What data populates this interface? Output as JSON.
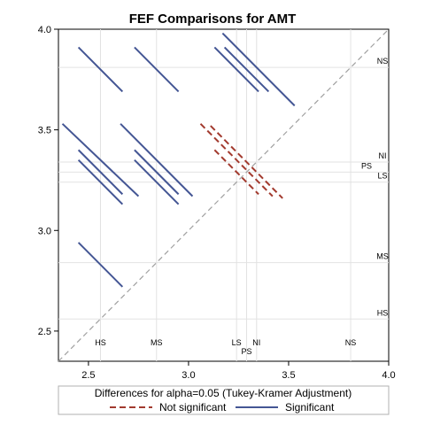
{
  "chart_data": {
    "type": "line",
    "title": "FEF Comparisons for AMT",
    "xlim": [
      2.35,
      4.0
    ],
    "ylim": [
      2.35,
      4.0
    ],
    "x_ticks": [
      "2.5",
      "3.0",
      "3.5",
      "4.0"
    ],
    "y_ticks": [
      "2.5",
      "3.0",
      "3.5",
      "4.0"
    ],
    "groups": [
      {
        "name": "HS",
        "mean": 2.56
      },
      {
        "name": "MS",
        "mean": 2.84
      },
      {
        "name": "LS",
        "mean": 3.24
      },
      {
        "name": "PS",
        "mean": 3.29
      },
      {
        "name": "NI",
        "mean": 3.34
      },
      {
        "name": "NS",
        "mean": 3.81
      }
    ],
    "comparisons": [
      {
        "from": "HS",
        "to": "MS",
        "x1": 2.45,
        "y1": 2.94,
        "x2": 2.67,
        "y2": 2.72,
        "significant": true
      },
      {
        "from": "HS",
        "to": "LS",
        "x1": 2.45,
        "y1": 3.35,
        "x2": 2.67,
        "y2": 3.13,
        "significant": true
      },
      {
        "from": "HS",
        "to": "PS",
        "x1": 2.45,
        "y1": 3.4,
        "x2": 2.67,
        "y2": 3.18,
        "significant": true
      },
      {
        "from": "HS",
        "to": "NI",
        "x1": 2.37,
        "y1": 3.53,
        "x2": 2.75,
        "y2": 3.17,
        "significant": true
      },
      {
        "from": "HS",
        "to": "NS",
        "x1": 2.45,
        "y1": 3.91,
        "x2": 2.67,
        "y2": 3.69,
        "significant": true
      },
      {
        "from": "MS",
        "to": "LS",
        "x1": 2.73,
        "y1": 3.35,
        "x2": 2.95,
        "y2": 3.13,
        "significant": true
      },
      {
        "from": "MS",
        "to": "PS",
        "x1": 2.73,
        "y1": 3.4,
        "x2": 2.95,
        "y2": 3.18,
        "significant": true
      },
      {
        "from": "MS",
        "to": "NI",
        "x1": 2.66,
        "y1": 3.53,
        "x2": 3.02,
        "y2": 3.17,
        "significant": true
      },
      {
        "from": "MS",
        "to": "NS",
        "x1": 2.73,
        "y1": 3.91,
        "x2": 2.95,
        "y2": 3.69,
        "significant": true
      },
      {
        "from": "LS",
        "to": "PS",
        "x1": 3.13,
        "y1": 3.4,
        "x2": 3.35,
        "y2": 3.18,
        "significant": false
      },
      {
        "from": "LS",
        "to": "NI",
        "x1": 3.06,
        "y1": 3.53,
        "x2": 3.42,
        "y2": 3.17,
        "significant": false
      },
      {
        "from": "LS",
        "to": "NS",
        "x1": 3.13,
        "y1": 3.91,
        "x2": 3.35,
        "y2": 3.69,
        "significant": true
      },
      {
        "from": "PS",
        "to": "NI",
        "x1": 3.11,
        "y1": 3.52,
        "x2": 3.47,
        "y2": 3.16,
        "significant": false
      },
      {
        "from": "PS",
        "to": "NS",
        "x1": 3.18,
        "y1": 3.91,
        "x2": 3.4,
        "y2": 3.69,
        "significant": true
      },
      {
        "from": "NI",
        "to": "NS",
        "x1": 3.17,
        "y1": 3.98,
        "x2": 3.53,
        "y2": 3.62,
        "significant": true
      }
    ],
    "legend": {
      "title": "Differences for alpha=0.05 (Tukey-Kramer Adjustment)",
      "placement": "bottom",
      "items": [
        {
          "label": "Not significant",
          "color": "#a23a2e",
          "style": "dashed"
        },
        {
          "label": "Significant",
          "color": "#445694",
          "style": "solid"
        }
      ]
    },
    "grid": true
  }
}
